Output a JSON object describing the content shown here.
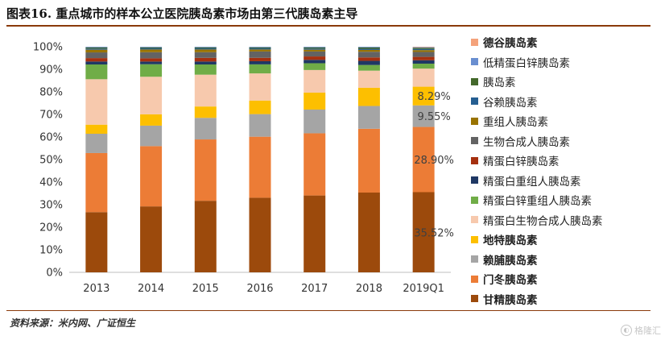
{
  "header": {
    "title": "图表16.   重点城市的样本公立医院胰岛素市场由第三代胰岛素主导"
  },
  "footer": {
    "source": "资料来源：米内网、广证恒生",
    "watermark": "格隆汇"
  },
  "chart_data": {
    "type": "stacked-bar",
    "title": "重点城市的样本公立医院胰岛素市场由第三代胰岛素主导",
    "categories": [
      "2013",
      "2014",
      "2015",
      "2016",
      "2017",
      "2018",
      "2019Q1"
    ],
    "ylim": [
      0,
      100
    ],
    "yticks": [
      "0%",
      "10%",
      "20%",
      "30%",
      "40%",
      "50%",
      "60%",
      "70%",
      "80%",
      "90%",
      "100%"
    ],
    "legend_position": "right",
    "series": [
      {
        "name": "甘精胰岛素",
        "color": "#9c4a0c",
        "bold": true,
        "values": [
          26.5,
          29,
          31.5,
          33,
          34,
          35,
          35.52
        ]
      },
      {
        "name": "门冬胰岛素",
        "color": "#ec7c36",
        "bold": true,
        "values": [
          26,
          26.5,
          27,
          27,
          27.5,
          28,
          28.9
        ]
      },
      {
        "name": "赖脯胰岛素",
        "color": "#a5a5a5",
        "bold": true,
        "values": [
          8.5,
          9,
          9.5,
          10,
          10.5,
          10,
          9.55
        ]
      },
      {
        "name": "地特胰岛素",
        "color": "#fdbf00",
        "bold": true,
        "values": [
          4,
          5,
          5,
          6,
          7.5,
          8,
          8.29
        ]
      },
      {
        "name": "精蛋白生物合成人胰岛素",
        "color": "#f7c9ad",
        "bold": false,
        "values": [
          20,
          16.5,
          14,
          12,
          10,
          7.5,
          8
        ]
      },
      {
        "name": "精蛋白锌重组人胰岛素",
        "color": "#70ad47",
        "bold": false,
        "values": [
          6.5,
          5.5,
          4.5,
          4,
          3,
          2.5,
          2.2
        ]
      },
      {
        "name": "精蛋白重组人胰岛素",
        "color": "#1f3864",
        "bold": false,
        "values": [
          1.3,
          1.2,
          1.3,
          1.4,
          1.5,
          1.8,
          1.5
        ]
      },
      {
        "name": "精蛋白锌胰岛素",
        "color": "#a5300f",
        "bold": false,
        "values": [
          1.5,
          1.4,
          1.6,
          1.5,
          1.5,
          1.5,
          1.5
        ]
      },
      {
        "name": "生物合成人胰岛素",
        "color": "#636363",
        "bold": false,
        "values": [
          2.5,
          2.7,
          2.5,
          2.8,
          2.2,
          2.5,
          2.2
        ]
      },
      {
        "name": "重组人胰岛素",
        "color": "#997300",
        "bold": false,
        "values": [
          1.2,
          1.2,
          1.2,
          0.9,
          0.8,
          0.8,
          0.8
        ]
      },
      {
        "name": "谷赖胰岛素",
        "color": "#255e91",
        "bold": false,
        "values": [
          0.5,
          0.5,
          0.5,
          0.5,
          0.5,
          0.5,
          0.5
        ]
      },
      {
        "name": "胰岛素",
        "color": "#43682b",
        "bold": false,
        "values": [
          0.5,
          0.4,
          0.4,
          0.4,
          0.5,
          0.6,
          0.5
        ]
      },
      {
        "name": "低精蛋白锌胰岛素",
        "color": "#698ed0",
        "bold": false,
        "values": [
          0.3,
          0.3,
          0.3,
          0.3,
          0.3,
          0.3,
          0.3
        ]
      },
      {
        "name": "德谷胰岛素",
        "color": "#f4a27b",
        "bold": true,
        "values": [
          0,
          0,
          0,
          0,
          0,
          0,
          0.2
        ]
      }
    ],
    "annotations": [
      {
        "category": "2019Q1",
        "series": "甘精胰岛素",
        "text": "35.52%"
      },
      {
        "category": "2019Q1",
        "series": "门冬胰岛素",
        "text": "28.90%"
      },
      {
        "category": "2019Q1",
        "series": "赖脯胰岛素",
        "text": "9.55%"
      },
      {
        "category": "2019Q1",
        "series": "地特胰岛素",
        "text": "8.29%"
      }
    ]
  }
}
